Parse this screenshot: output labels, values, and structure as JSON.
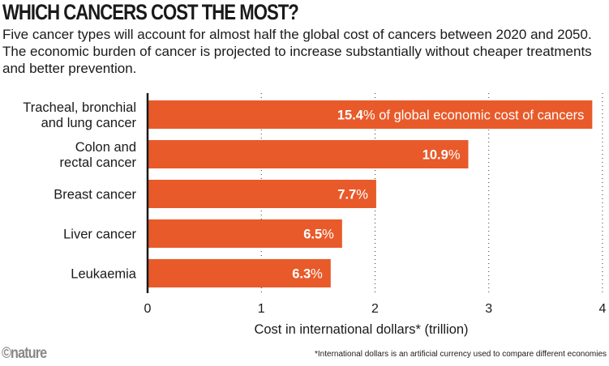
{
  "title": "WHICH CANCERS COST THE MOST?",
  "subtitle": "Five cancer types will account for almost half the global cost of cancers between 2020 and 2050. The economic burden of cancer is projected to increase substantially without cheaper treatments and better prevention.",
  "logo": "©nature",
  "footnote": "*International dollars is an artificial currency used to compare different economies",
  "chart_data": {
    "type": "bar",
    "orientation": "horizontal",
    "categories": [
      [
        "Tracheal, bronchial",
        "and lung cancer"
      ],
      [
        "Colon and",
        "rectal cancer"
      ],
      [
        "Breast cancer"
      ],
      [
        "Liver cancer"
      ],
      [
        "Leukaemia"
      ]
    ],
    "values": [
      3.91,
      2.82,
      2.01,
      1.71,
      1.61
    ],
    "share_labels": [
      "15.4",
      "10.9",
      "7.7",
      "6.5",
      "6.3"
    ],
    "percent_sign": "%",
    "first_label_suffix": " of global economic cost of cancers",
    "xlabel": "Cost in international dollars* (trillion)",
    "xlim": [
      0,
      4
    ],
    "xticks": [
      "0",
      "1",
      "2",
      "3",
      "4"
    ],
    "grid": "dotted vertical",
    "bar_color": "#E85A2A"
  }
}
